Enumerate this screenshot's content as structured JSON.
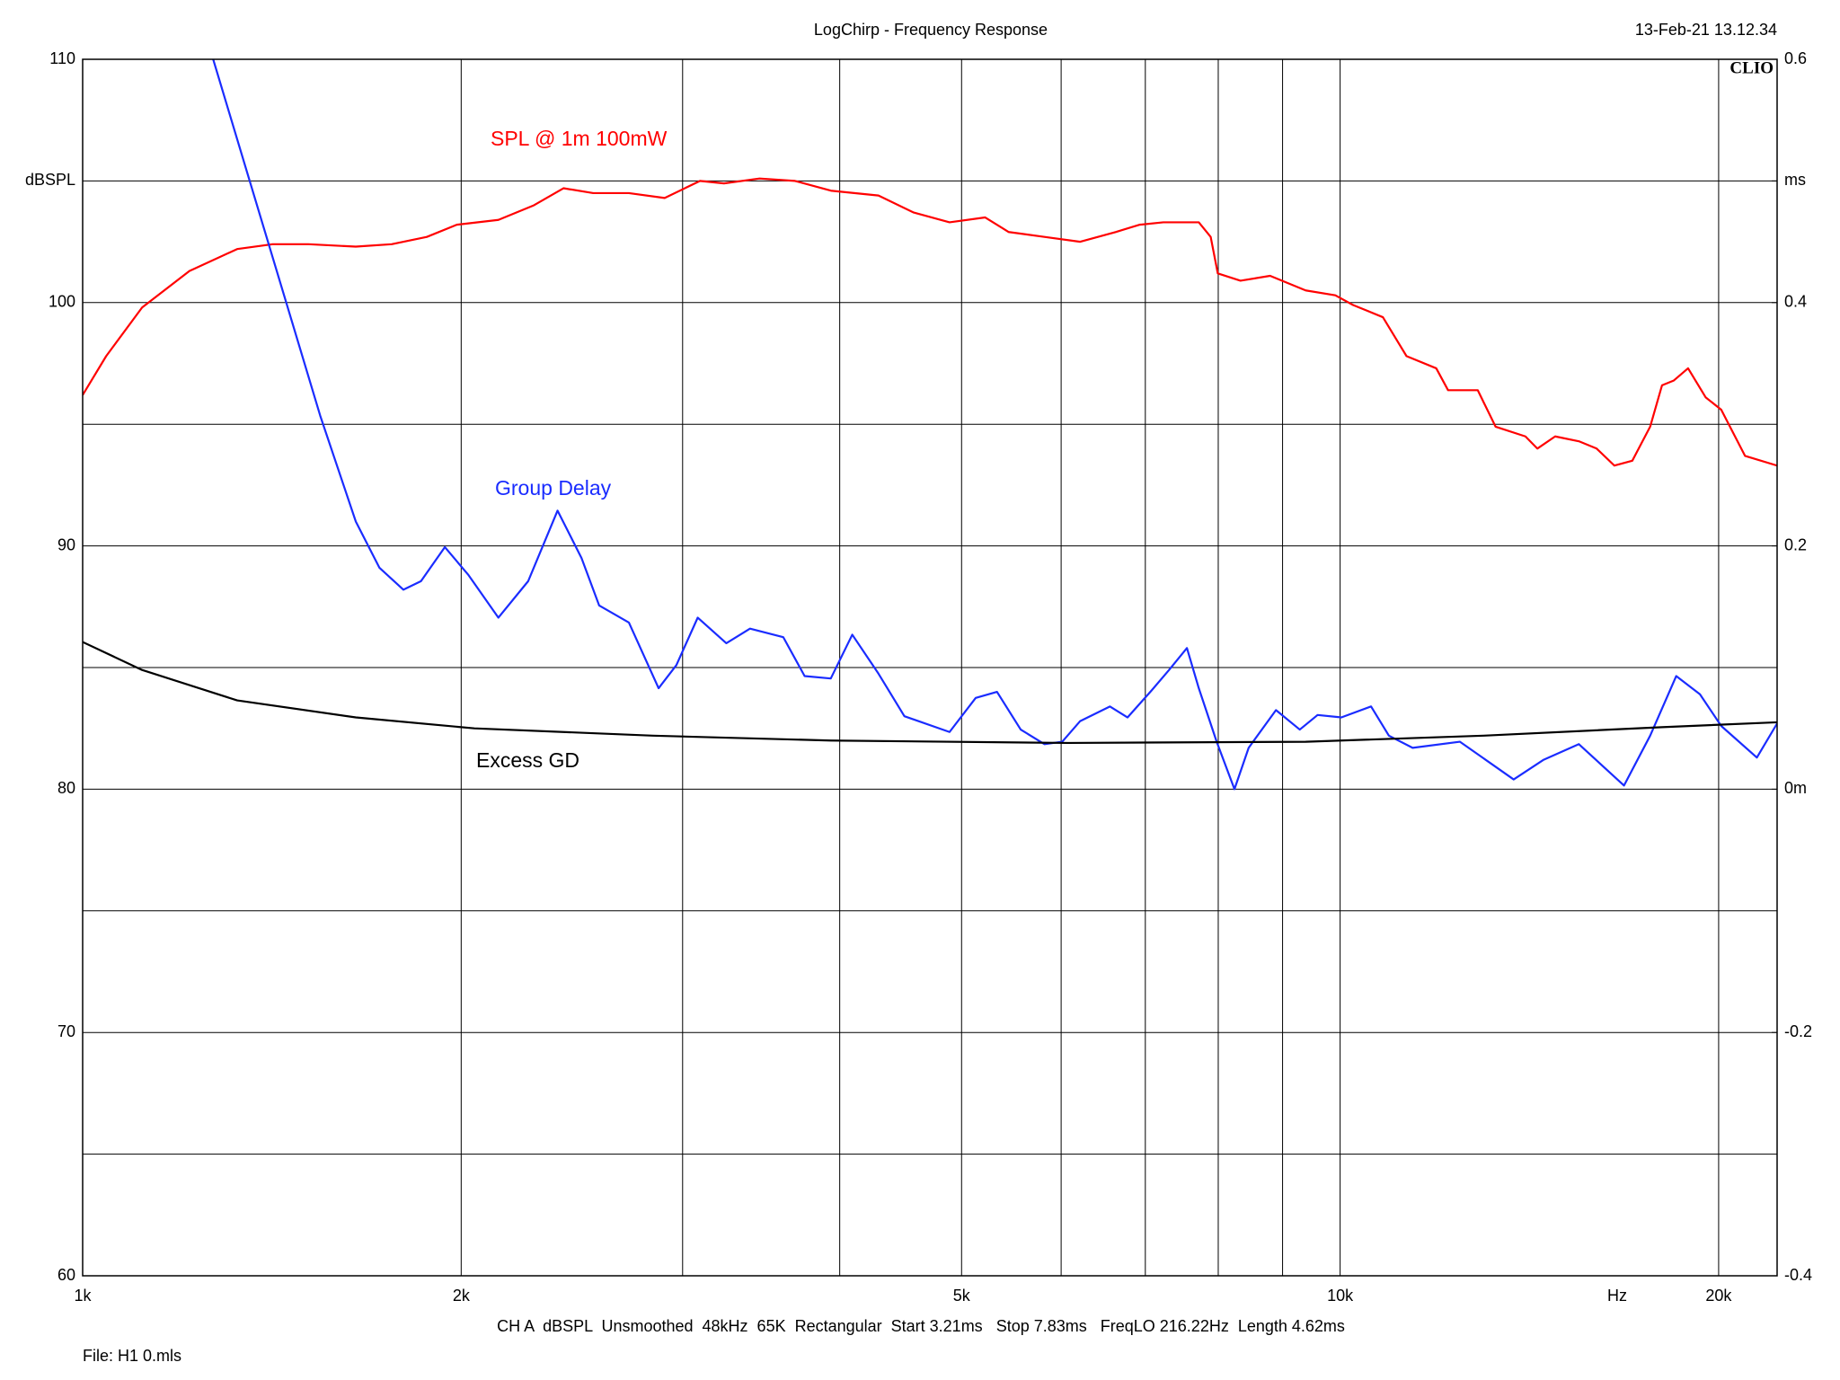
{
  "chart_data": {
    "type": "line",
    "title": "LogChirp - Frequency Response",
    "timestamp": "13-Feb-21 13.12.34",
    "brand": "CLIO",
    "footer": "CH A  dBSPL  Unsmoothed  48kHz  65K  Rectangular  Start 3.21ms   Stop 7.83ms   FreqLO 216.22Hz  Length 4.62ms",
    "file": "File: H1 0.mls",
    "xlabel": "Hz",
    "xscale": "log",
    "grid": true,
    "xlim": [
      1000,
      22260
    ],
    "xticks": [
      {
        "value": 1000,
        "label": "1k"
      },
      {
        "value": 2000,
        "label": "2k"
      },
      {
        "value": 5000,
        "label": "5k"
      },
      {
        "value": 10000,
        "label": "10k"
      },
      {
        "value": 20000,
        "label": "20k"
      }
    ],
    "xminor": [
      3000,
      4000,
      6000,
      7000,
      8000,
      9000
    ],
    "ylim": [
      60,
      110
    ],
    "yticks": [
      60,
      70,
      80,
      90,
      100,
      {
        "value": 105,
        "label": "dBSPL"
      },
      110
    ],
    "yminor": [
      65,
      75,
      85,
      95
    ],
    "y2lim": [
      -0.4,
      0.6
    ],
    "y2ticks": [
      -0.4,
      -0.2,
      {
        "value": 0,
        "label": "0m"
      },
      0.2,
      0.4,
      {
        "value": 0.5,
        "label": "ms"
      },
      0.6
    ],
    "series": [
      {
        "name": "SPL @ 1m 100mW",
        "color": "#ff0000",
        "x": [
          1000,
          1044,
          1115,
          1216,
          1327,
          1416,
          1512,
          1649,
          1761,
          1878,
          1984,
          2141,
          2285,
          2412,
          2547,
          2719,
          2903,
          3097,
          3236,
          3454,
          3686,
          3936,
          4294,
          4581,
          4891,
          5221,
          5451,
          5820,
          6213,
          6629,
          6925,
          7234,
          7720,
          7890,
          7993,
          8332,
          8797,
          9389,
          9913,
          10240,
          10815,
          11293,
          11925,
          12186,
          12866,
          13293,
          14040,
          14350,
          14826,
          15484,
          15996,
          16524,
          17075,
          17643,
          18030,
          18426,
          18911,
          19534,
          20094,
          20990,
          22260
        ],
        "values": [
          96.2,
          97.8,
          99.8,
          101.3,
          102.2,
          102.4,
          102.4,
          102.3,
          102.4,
          102.7,
          103.2,
          103.4,
          104.0,
          104.7,
          104.5,
          104.5,
          104.3,
          105.0,
          104.9,
          105.1,
          105.0,
          104.6,
          104.4,
          103.7,
          103.3,
          103.5,
          102.9,
          102.7,
          102.5,
          102.9,
          103.2,
          103.3,
          103.3,
          102.7,
          101.2,
          100.9,
          101.1,
          100.5,
          100.3,
          99.9,
          99.4,
          97.8,
          97.3,
          96.4,
          96.4,
          94.9,
          94.5,
          94.0,
          94.5,
          94.3,
          94.0,
          93.3,
          93.5,
          94.9,
          96.6,
          96.8,
          97.3,
          96.1,
          95.6,
          93.7,
          93.3
        ]
      },
      {
        "name": "Group Delay",
        "color": "#1a2cff",
        "axis": "y2",
        "x": [
          1270,
          1356,
          1447,
          1545,
          1649,
          1722,
          1799,
          1858,
          1941,
          2027,
          2141,
          2261,
          2386,
          2493,
          2575,
          2719,
          2871,
          2966,
          3084,
          3250,
          3394,
          3607,
          3751,
          3935,
          4093,
          4294,
          4503,
          4891,
          5131,
          5335,
          5572,
          5820,
          6012,
          6213,
          6560,
          6776,
          7078,
          7311,
          7554,
          7720,
          7977,
          8241,
          8458,
          8892,
          9288,
          9596,
          10023,
          10583,
          10934,
          11420,
          12454,
          13741,
          14505,
          15484,
          16817,
          17643,
          18506,
          19327,
          20094,
          21450,
          22260
        ],
        "values": [
          0.6,
          0.502,
          0.405,
          0.307,
          0.22,
          0.182,
          0.164,
          0.171,
          0.199,
          0.176,
          0.141,
          0.171,
          0.229,
          0.19,
          0.151,
          0.137,
          0.083,
          0.102,
          0.141,
          0.12,
          0.132,
          0.125,
          0.093,
          0.091,
          0.127,
          0.095,
          0.06,
          0.047,
          0.075,
          0.08,
          0.049,
          0.037,
          0.039,
          0.056,
          0.068,
          0.059,
          0.081,
          0.098,
          0.116,
          0.083,
          0.039,
          0.0,
          0.034,
          0.065,
          0.049,
          0.061,
          0.059,
          0.068,
          0.044,
          0.034,
          0.039,
          0.008,
          0.024,
          0.037,
          0.003,
          0.044,
          0.093,
          0.078,
          0.052,
          0.026,
          0.054
        ]
      },
      {
        "name": "Excess GD",
        "color": "#000000",
        "axis": "y2",
        "x": [
          1000,
          1115,
          1327,
          1649,
          2049,
          2840,
          3935,
          6078,
          9389,
          13010,
          18030,
          22260
        ],
        "values": [
          0.121,
          0.098,
          0.073,
          0.059,
          0.05,
          0.044,
          0.04,
          0.038,
          0.039,
          0.044,
          0.051,
          0.055
        ]
      }
    ]
  }
}
